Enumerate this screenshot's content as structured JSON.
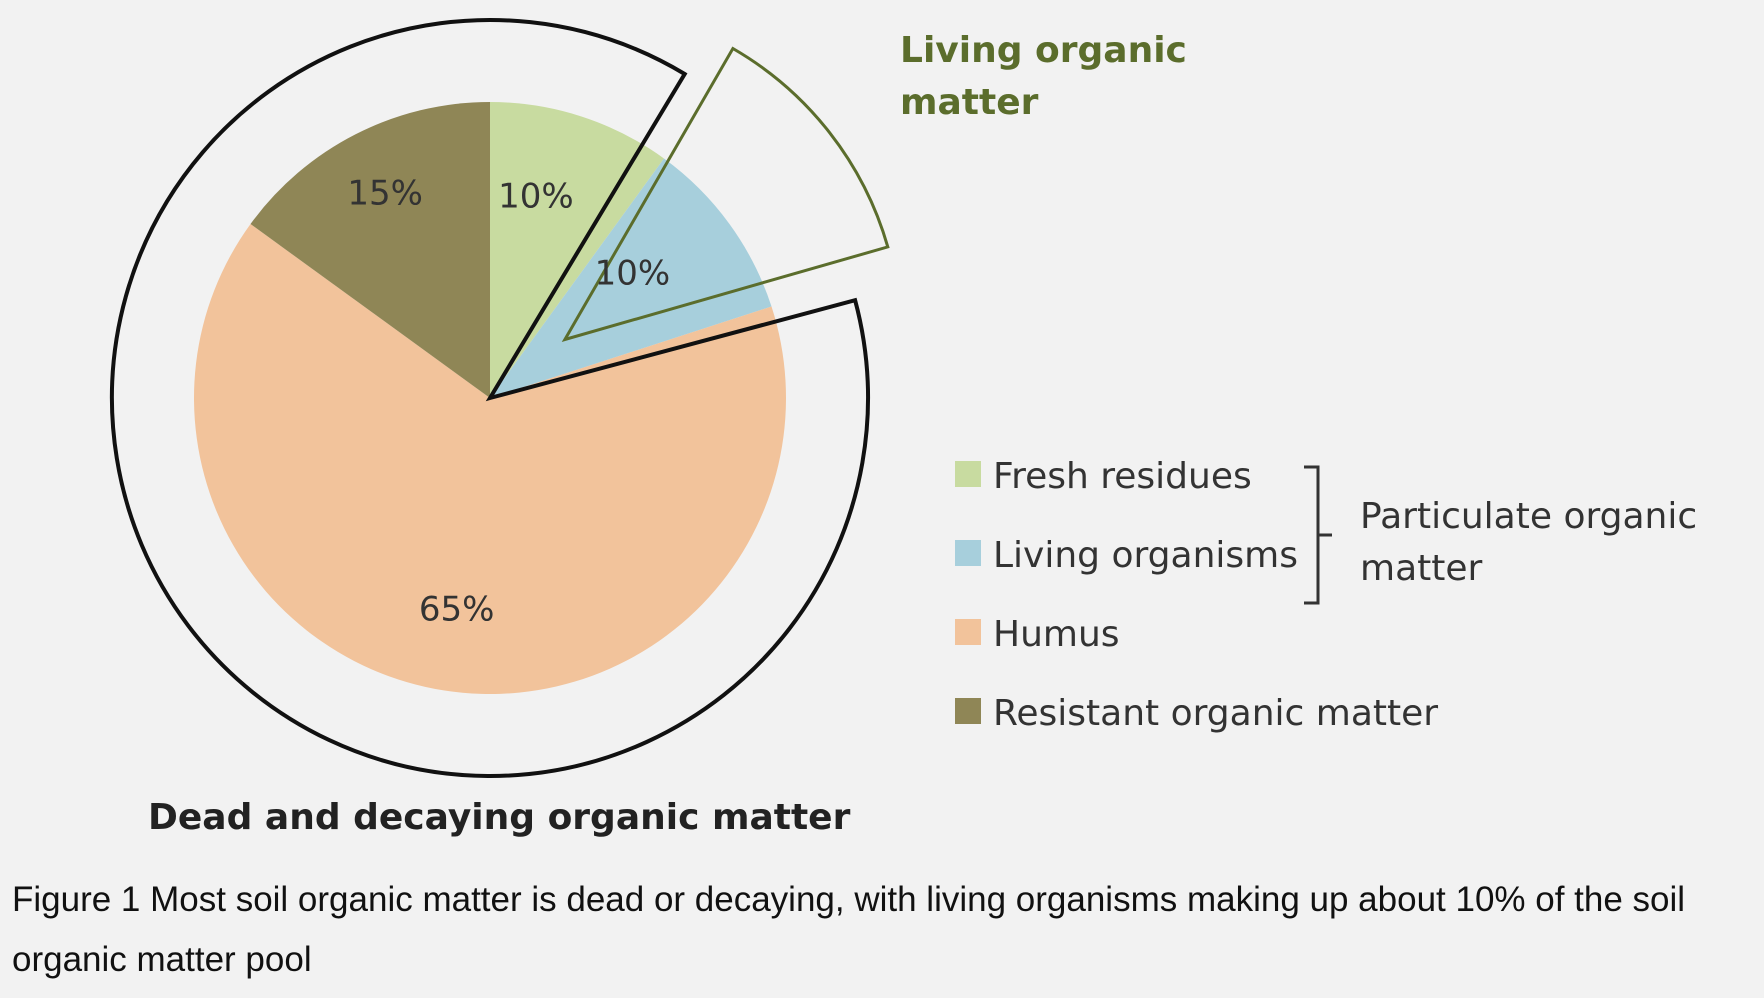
{
  "chart_data": {
    "type": "pie",
    "categories": [
      "Fresh residues",
      "Living organisms",
      "Humus",
      "Resistant organic matter"
    ],
    "values": [
      10,
      10,
      65,
      15
    ],
    "value_labels": [
      "10%",
      "10%",
      "65%",
      "15%"
    ],
    "colors": [
      "#c8dba0",
      "#a7cfdc",
      "#f2c39b",
      "#8f8656"
    ],
    "group_labels": {
      "living_line1": "Living organic",
      "living_line2": "matter",
      "dead": "Dead and decaying organic matter"
    },
    "legend": {
      "items": [
        "Fresh residues",
        "Living organisms",
        "Humus",
        "Resistant organic matter"
      ],
      "bracket_line1": "Particulate organic",
      "bracket_line2": "matter",
      "placement": "right"
    }
  },
  "caption": "Figure 1 Most soil organic matter is dead or decaying, with living organisms making up about 10% of the soil organic matter pool"
}
